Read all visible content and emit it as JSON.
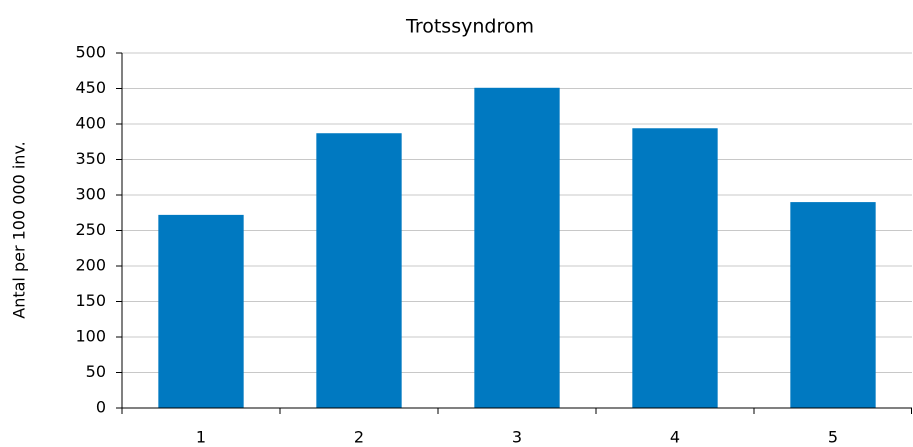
{
  "chart_data": {
    "type": "bar",
    "title": "Trotssyndrom",
    "y_label": "Antal per 100 000 inv.",
    "categories": [
      "1",
      "2",
      "3",
      "4",
      "5"
    ],
    "values": [
      272,
      387,
      451,
      394,
      290
    ],
    "color": "#0079c1",
    "ylim": [
      0,
      500
    ],
    "yticks": [
      0,
      50,
      100,
      150,
      200,
      250,
      300,
      350,
      400,
      450,
      500
    ],
    "grid": true
  }
}
